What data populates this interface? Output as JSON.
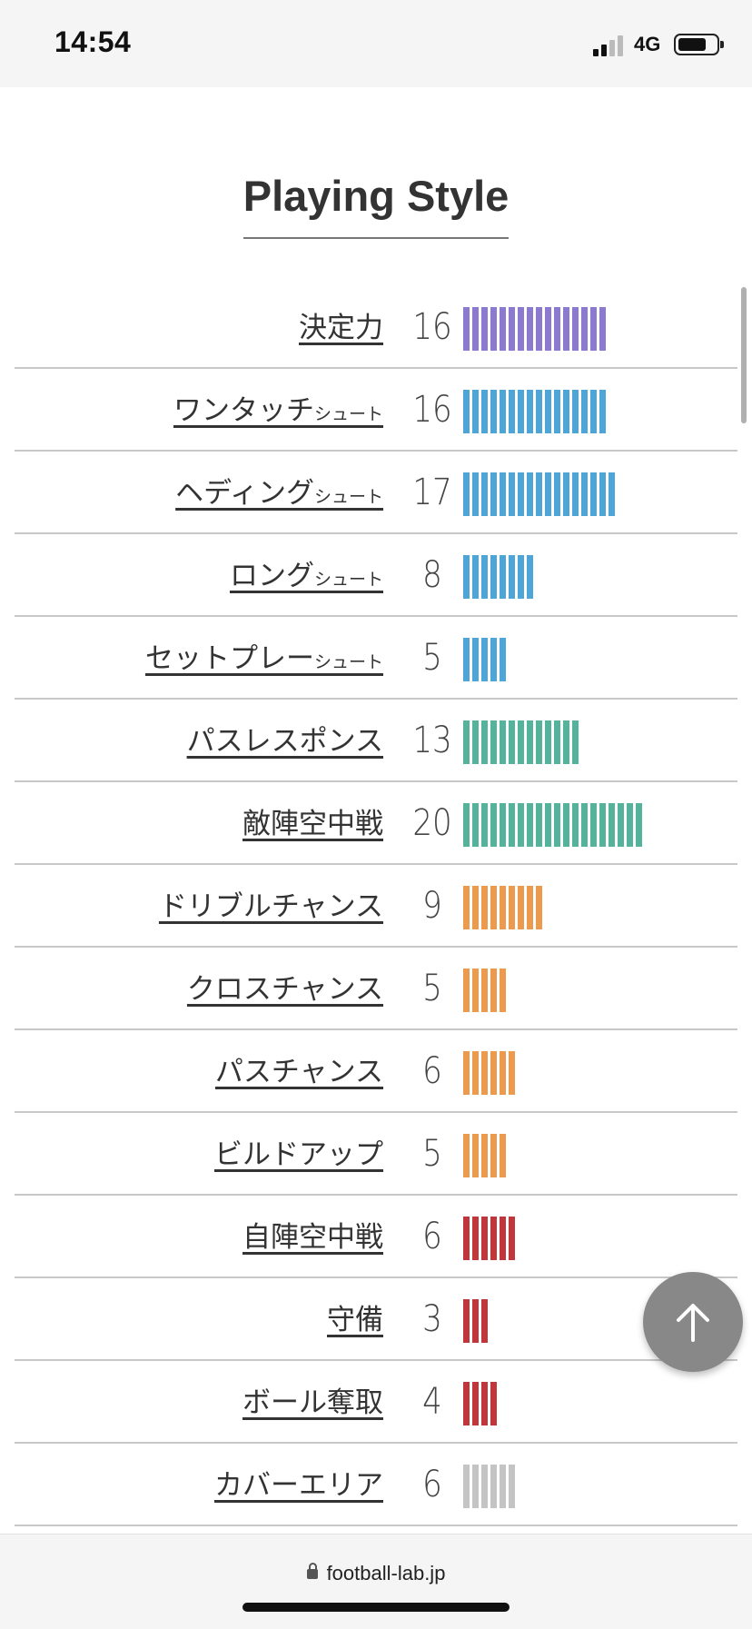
{
  "status_bar": {
    "time": "14:54",
    "network": "4G",
    "signal_bars_active": 2,
    "battery_level": 0.7
  },
  "title": "Playing Style",
  "colors": {
    "purple": "#8c7ad1",
    "blue": "#4ea6d8",
    "green": "#56b39b",
    "orange": "#ec9a4d",
    "red": "#c0363a",
    "gray": "#c4c4c4"
  },
  "rows": [
    {
      "label": "決定力",
      "sub": "",
      "value": "16",
      "color": "purple"
    },
    {
      "label": "ワンタッチ",
      "sub": "シュート",
      "value": "16",
      "color": "blue"
    },
    {
      "label": "ヘディング",
      "sub": "シュート",
      "value": "17",
      "color": "blue"
    },
    {
      "label": "ロング",
      "sub": "シュート",
      "value": "8",
      "color": "blue"
    },
    {
      "label": "セットプレー",
      "sub": "シュート",
      "value": "5",
      "color": "blue"
    },
    {
      "label": "パスレスポンス",
      "sub": "",
      "value": "13",
      "color": "green"
    },
    {
      "label": "敵陣空中戦",
      "sub": "",
      "value": "20",
      "color": "green"
    },
    {
      "label": "ドリブルチャンス",
      "sub": "",
      "value": "9",
      "color": "orange"
    },
    {
      "label": "クロスチャンス",
      "sub": "",
      "value": "5",
      "color": "orange"
    },
    {
      "label": "パスチャンス",
      "sub": "",
      "value": "6",
      "color": "orange"
    },
    {
      "label": "ビルドアップ",
      "sub": "",
      "value": "5",
      "color": "orange"
    },
    {
      "label": "自陣空中戦",
      "sub": "",
      "value": "6",
      "color": "red"
    },
    {
      "label": "守備",
      "sub": "",
      "value": "3",
      "color": "red"
    },
    {
      "label": "ボール奪取",
      "sub": "",
      "value": "4",
      "color": "red"
    },
    {
      "label": "カバーエリア",
      "sub": "",
      "value": "6",
      "color": "gray"
    }
  ],
  "browser": {
    "url": "football-lab.jp"
  }
}
